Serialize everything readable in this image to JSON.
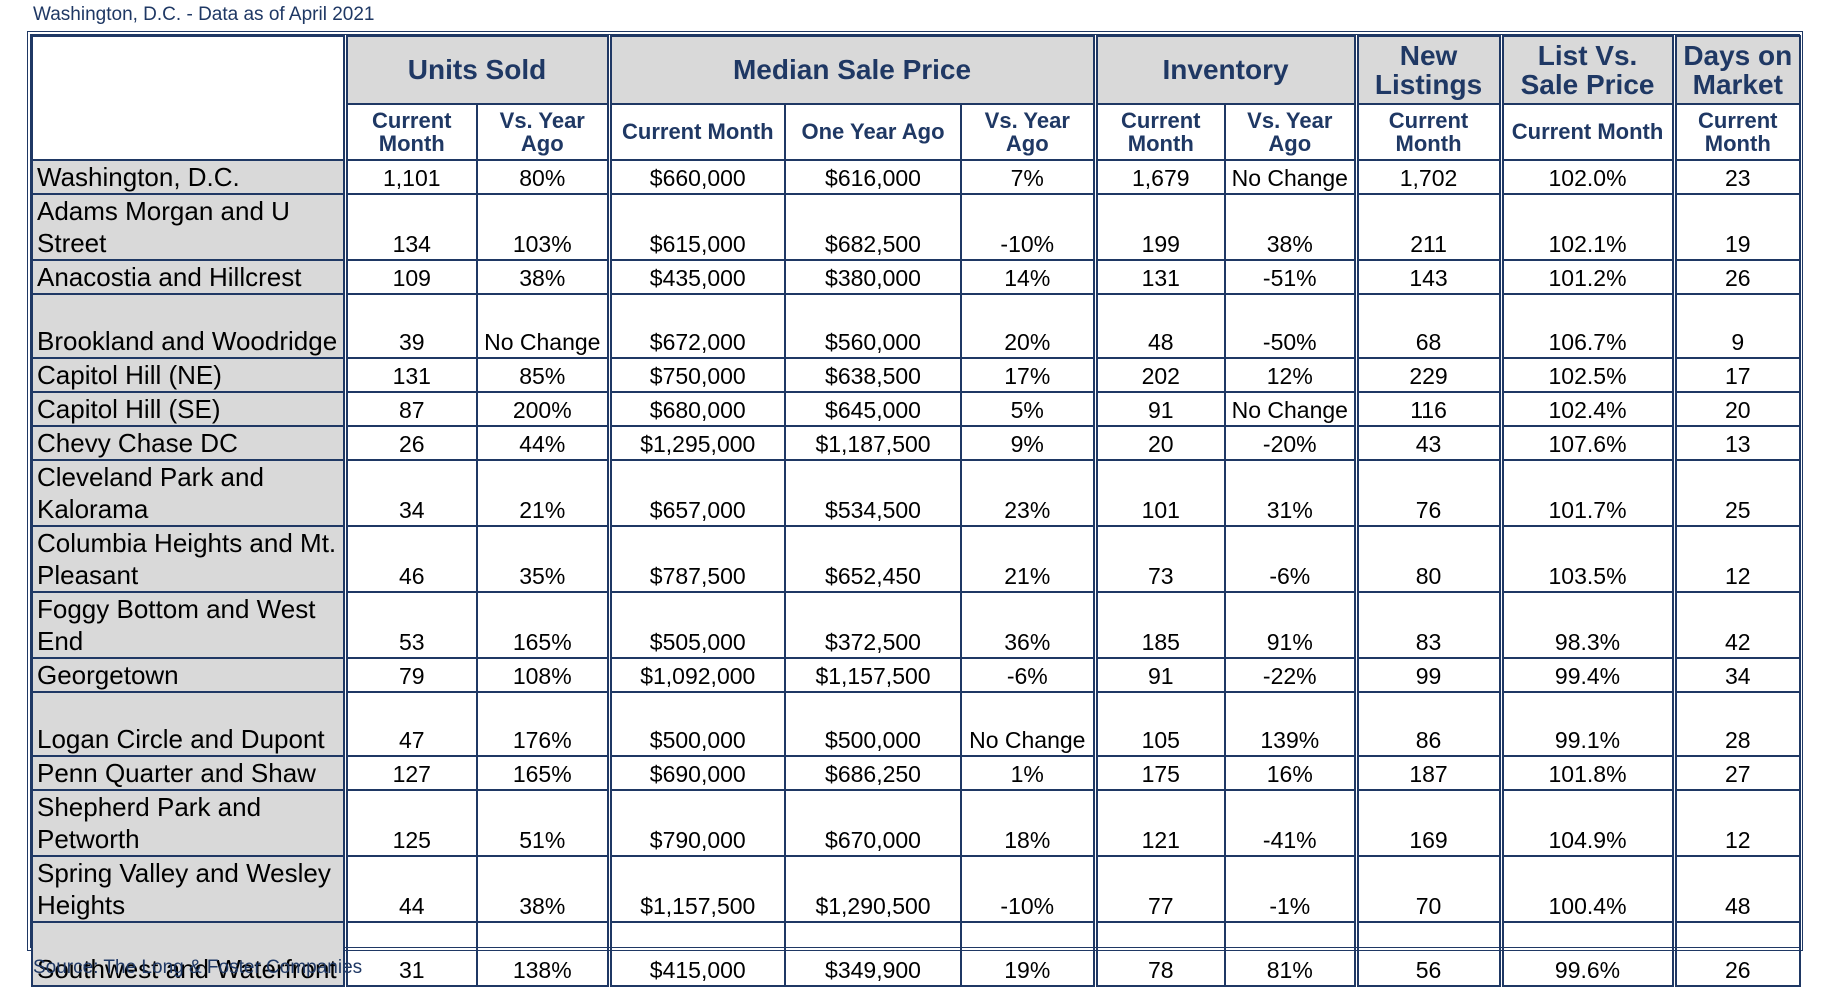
{
  "header_caption": "Washington, D.C. - Data as of April 2021",
  "footer_caption": "Source: The Long & Foster Companies",
  "groups": {
    "units_sold": "Units Sold",
    "median_sale_price": "Median Sale Price",
    "inventory": "Inventory",
    "new_listings": "New Listings",
    "list_vs_sale": "List Vs. Sale Price",
    "days_on_market": "Days on Market"
  },
  "subheaders": {
    "current_month": "Current Month",
    "vs_year_ago": "Vs. Year Ago",
    "one_year_ago": "One Year Ago"
  },
  "rows": [
    {
      "name": "Washington, D.C.",
      "units": "1,101",
      "units_vs": "80%",
      "price_cur": "$660,000",
      "price_prev": "$616,000",
      "price_vs": "7%",
      "inv": "1,679",
      "inv_vs": "No Change",
      "new": "1,702",
      "list_sale": "102.0%",
      "dom": "23"
    },
    {
      "name": "Adams Morgan and U Street",
      "units": "134",
      "units_vs": "103%",
      "price_cur": "$615,000",
      "price_prev": "$682,500",
      "price_vs": "-10%",
      "inv": "199",
      "inv_vs": "38%",
      "new": "211",
      "list_sale": "102.1%",
      "dom": "19"
    },
    {
      "name": "Anacostia and Hillcrest",
      "units": "109",
      "units_vs": "38%",
      "price_cur": "$435,000",
      "price_prev": "$380,000",
      "price_vs": "14%",
      "inv": "131",
      "inv_vs": "-51%",
      "new": "143",
      "list_sale": "101.2%",
      "dom": "26"
    },
    {
      "name": "Brookland and Woodridge",
      "units": "39",
      "units_vs": "No Change",
      "price_cur": "$672,000",
      "price_prev": "$560,000",
      "price_vs": "20%",
      "inv": "48",
      "inv_vs": "-50%",
      "new": "68",
      "list_sale": "106.7%",
      "dom": "9"
    },
    {
      "name": "Capitol Hill (NE)",
      "units": "131",
      "units_vs": "85%",
      "price_cur": "$750,000",
      "price_prev": "$638,500",
      "price_vs": "17%",
      "inv": "202",
      "inv_vs": "12%",
      "new": "229",
      "list_sale": "102.5%",
      "dom": "17"
    },
    {
      "name": "Capitol Hill (SE)",
      "units": "87",
      "units_vs": "200%",
      "price_cur": "$680,000",
      "price_prev": "$645,000",
      "price_vs": "5%",
      "inv": "91",
      "inv_vs": "No Change",
      "new": "116",
      "list_sale": "102.4%",
      "dom": "20"
    },
    {
      "name": "Chevy Chase DC",
      "units": "26",
      "units_vs": "44%",
      "price_cur": "$1,295,000",
      "price_prev": "$1,187,500",
      "price_vs": "9%",
      "inv": "20",
      "inv_vs": "-20%",
      "new": "43",
      "list_sale": "107.6%",
      "dom": "13"
    },
    {
      "name": "Cleveland Park and Kalorama",
      "units": "34",
      "units_vs": "21%",
      "price_cur": "$657,000",
      "price_prev": "$534,500",
      "price_vs": "23%",
      "inv": "101",
      "inv_vs": "31%",
      "new": "76",
      "list_sale": "101.7%",
      "dom": "25"
    },
    {
      "name": "Columbia Heights and Mt. Pleasant",
      "units": "46",
      "units_vs": "35%",
      "price_cur": "$787,500",
      "price_prev": "$652,450",
      "price_vs": "21%",
      "inv": "73",
      "inv_vs": "-6%",
      "new": "80",
      "list_sale": "103.5%",
      "dom": "12"
    },
    {
      "name": "Foggy Bottom and West End",
      "units": "53",
      "units_vs": "165%",
      "price_cur": "$505,000",
      "price_prev": "$372,500",
      "price_vs": "36%",
      "inv": "185",
      "inv_vs": "91%",
      "new": "83",
      "list_sale": "98.3%",
      "dom": "42"
    },
    {
      "name": "Georgetown",
      "units": "79",
      "units_vs": "108%",
      "price_cur": "$1,092,000",
      "price_prev": "$1,157,500",
      "price_vs": "-6%",
      "inv": "91",
      "inv_vs": "-22%",
      "new": "99",
      "list_sale": "99.4%",
      "dom": "34"
    },
    {
      "name": "Logan Circle and Dupont",
      "units": "47",
      "units_vs": "176%",
      "price_cur": "$500,000",
      "price_prev": "$500,000",
      "price_vs": "No Change",
      "inv": "105",
      "inv_vs": "139%",
      "new": "86",
      "list_sale": "99.1%",
      "dom": "28"
    },
    {
      "name": "Penn Quarter and Shaw",
      "units": "127",
      "units_vs": "165%",
      "price_cur": "$690,000",
      "price_prev": "$686,250",
      "price_vs": "1%",
      "inv": "175",
      "inv_vs": "16%",
      "new": "187",
      "list_sale": "101.8%",
      "dom": "27"
    },
    {
      "name": "Shepherd Park and Petworth",
      "units": "125",
      "units_vs": "51%",
      "price_cur": "$790,000",
      "price_prev": "$670,000",
      "price_vs": "18%",
      "inv": "121",
      "inv_vs": "-41%",
      "new": "169",
      "list_sale": "104.9%",
      "dom": "12"
    },
    {
      "name": "Spring Valley and Wesley Heights",
      "units": "44",
      "units_vs": "38%",
      "price_cur": "$1,157,500",
      "price_prev": "$1,290,500",
      "price_vs": "-10%",
      "inv": "77",
      "inv_vs": "-1%",
      "new": "70",
      "list_sale": "100.4%",
      "dom": "48"
    },
    {
      "name": "Southwest and Waterfront",
      "units": "31",
      "units_vs": "138%",
      "price_cur": "$415,000",
      "price_prev": "$349,900",
      "price_vs": "19%",
      "inv": "78",
      "inv_vs": "81%",
      "new": "56",
      "list_sale": "99.6%",
      "dom": "26"
    }
  ]
}
